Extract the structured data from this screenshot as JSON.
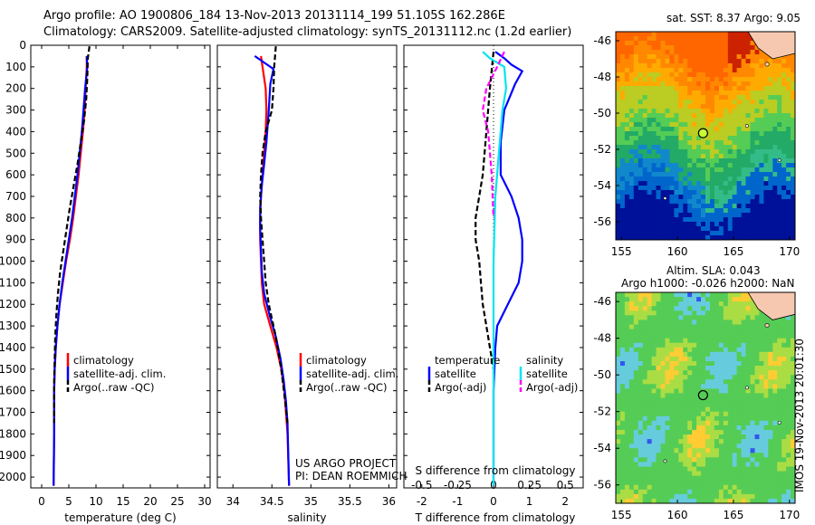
{
  "header": {
    "line1": "Argo profile: AO 1900806_184 13-Nov-2013 20131114_199 51.105S 162.286E",
    "line2": "Climatology: CARS2009. Satellite-adjusted climatology: synTS_20131112.nc (1.2d earlier)"
  },
  "credits": {
    "project": "US ARGO PROJECT",
    "pi": "PI: DEAN ROEMMICH"
  },
  "stamp": "IMOS 19-Nov-2013 20:01:30",
  "colors": {
    "climatology": "#ff0000",
    "satellite": "#0000ff",
    "argo": "#000000",
    "sat_salinity": "#00e5ee",
    "argo_salinity": "#ff00ff"
  },
  "legend_temp_sal": [
    "climatology",
    "satellite-adj. clim.",
    "Argo(..raw -QC)"
  ],
  "legend_diff": {
    "temperature_head": "temperature",
    "salinity_head": "salinity",
    "items": [
      "satellite",
      "Argo(-adj)",
      "satellite",
      "Argo(-adj)"
    ]
  },
  "depth_ticks": [
    0,
    100,
    200,
    300,
    400,
    500,
    600,
    700,
    800,
    900,
    1000,
    1100,
    1200,
    1300,
    1400,
    1500,
    1600,
    1700,
    1800,
    1900,
    2000
  ],
  "chart_data": [
    {
      "type": "line",
      "panel": "temperature",
      "xlabel": "temperature (deg C)",
      "ylabel": "",
      "xlim": [
        -2,
        31
      ],
      "ylim": [
        2050,
        0
      ],
      "xticks": [
        0,
        5,
        10,
        15,
        20,
        25,
        30
      ],
      "series": [
        {
          "name": "climatology",
          "x": [
            8.3,
            8.3,
            8.1,
            7.9,
            7.6,
            7.2,
            6.8,
            6.3,
            5.8,
            5.2,
            4.5,
            3.9,
            3.3,
            2.9,
            2.6,
            2.4,
            2.3,
            2.3,
            2.3,
            2.2
          ],
          "y": [
            50,
            100,
            200,
            300,
            400,
            500,
            600,
            700,
            800,
            900,
            1000,
            1100,
            1200,
            1300,
            1400,
            1500,
            1600,
            1700,
            1800,
            2040
          ]
        },
        {
          "name": "satellite-adj. clim.",
          "x": [
            8.3,
            8.4,
            8.0,
            7.7,
            7.4,
            7.0,
            6.6,
            6.1,
            5.6,
            5.0,
            4.4,
            3.8,
            3.3,
            2.9,
            2.6,
            2.4,
            2.3,
            2.3,
            2.3,
            2.2
          ],
          "y": [
            50,
            100,
            200,
            300,
            400,
            500,
            600,
            700,
            800,
            900,
            1000,
            1100,
            1200,
            1300,
            1400,
            1500,
            1600,
            1700,
            1800,
            2040
          ]
        },
        {
          "name": "Argo(..raw -QC)",
          "x": [
            8.8,
            8.5,
            8.4,
            8.2,
            7.8,
            7.2,
            6.6,
            5.9,
            5.2,
            4.6,
            4.0,
            3.4,
            3.0,
            2.7,
            2.5,
            2.4,
            2.3,
            2.3,
            2.3
          ],
          "y": [
            5,
            60,
            150,
            250,
            350,
            450,
            550,
            650,
            750,
            850,
            950,
            1050,
            1150,
            1250,
            1350,
            1450,
            1550,
            1650,
            1750
          ]
        }
      ]
    },
    {
      "type": "line",
      "panel": "salinity",
      "xlabel": "salinity",
      "ylabel": "",
      "xlim": [
        33.8,
        36.1
      ],
      "ylim": [
        2050,
        0
      ],
      "xticks": [
        34,
        34.5,
        35,
        35.5,
        36
      ],
      "series": [
        {
          "name": "climatology",
          "x": [
            34.36,
            34.38,
            34.42,
            34.43,
            34.42,
            34.4,
            34.38,
            34.36,
            34.35,
            34.35,
            34.36,
            34.37,
            34.4,
            34.48,
            34.56,
            34.62,
            34.66,
            34.68,
            34.7,
            34.72
          ],
          "y": [
            50,
            100,
            200,
            300,
            400,
            500,
            600,
            700,
            800,
            900,
            1000,
            1100,
            1200,
            1300,
            1400,
            1500,
            1600,
            1700,
            1800,
            2040
          ]
        },
        {
          "name": "satellite-adj. clim.",
          "x": [
            34.28,
            34.4,
            34.52,
            34.48,
            34.46,
            34.43,
            34.4,
            34.37,
            34.35,
            34.35,
            34.36,
            34.37,
            34.4,
            34.47,
            34.55,
            34.61,
            34.65,
            34.68,
            34.7,
            34.72
          ],
          "y": [
            50,
            80,
            110,
            180,
            300,
            450,
            550,
            650,
            750,
            850,
            950,
            1050,
            1150,
            1250,
            1350,
            1450,
            1550,
            1650,
            1750,
            2040
          ]
        },
        {
          "name": "Argo(..raw -QC)",
          "x": [
            34.55,
            34.53,
            34.52,
            34.5,
            34.42,
            34.38,
            34.36,
            34.35,
            34.36,
            34.38,
            34.4,
            34.42,
            34.46,
            34.55,
            34.62,
            34.67,
            34.7
          ],
          "y": [
            5,
            100,
            200,
            300,
            400,
            500,
            600,
            700,
            800,
            900,
            1000,
            1100,
            1200,
            1350,
            1500,
            1650,
            1750
          ]
        }
      ]
    },
    {
      "type": "line",
      "panel": "difference",
      "xlabel": "T difference from climatology",
      "x2label": "S difference from climatology",
      "xlim": [
        -2.5,
        2.5
      ],
      "ylim": [
        2050,
        0
      ],
      "xticks": [
        -2,
        -1,
        0,
        1,
        2
      ],
      "xticks_labels": [
        "-2",
        "-1",
        "0",
        "1",
        "2"
      ],
      "x2ticks": [
        -0.5,
        -0.25,
        0,
        0.25,
        0.5
      ],
      "x2ticks_labels": [
        "-0.5",
        "-0.25",
        "0",
        "0.25",
        "0.5"
      ],
      "series": [
        {
          "name": "satellite",
          "x": [
            0.05,
            0.3,
            0.5,
            0.8,
            0.6,
            0.3,
            0.2,
            0.2,
            0.5,
            0.7,
            0.8,
            0.8,
            0.8,
            0.7,
            0.4,
            0.1,
            0.05,
            0.0,
            0.0
          ],
          "y": [
            30,
            60,
            90,
            120,
            180,
            300,
            450,
            600,
            700,
            800,
            900,
            950,
            1000,
            1100,
            1200,
            1300,
            1400,
            1600,
            2040
          ]
        },
        {
          "name": "Argo(-adj)",
          "x": [
            0.0,
            -0.1,
            -0.2,
            -0.3,
            -0.4,
            -0.5,
            -0.5,
            -0.4,
            -0.35,
            -0.3,
            -0.2,
            -0.1,
            0.0
          ],
          "y": [
            30,
            200,
            400,
            600,
            700,
            800,
            900,
            1000,
            1100,
            1200,
            1300,
            1400,
            1500
          ]
        },
        {
          "name": "satellite",
          "x": [
            -0.3,
            -0.1,
            0.3,
            0.35,
            0.25,
            0.15,
            0.05,
            0.0,
            0.0
          ],
          "y": [
            30,
            60,
            100,
            200,
            300,
            500,
            700,
            1000,
            2040
          ]
        },
        {
          "name": "Argo(-adj)",
          "x": [
            0.3,
            0.1,
            -0.2,
            -0.3,
            -0.15,
            -0.05,
            0.0
          ],
          "y": [
            30,
            100,
            200,
            300,
            400,
            600,
            800
          ]
        }
      ]
    },
    {
      "type": "heatmap",
      "panel": "map-sst",
      "title": "sat. SST: 8.37  Argo: 9.05",
      "xlim": [
        154.5,
        170.5
      ],
      "ylim": [
        -57,
        -45.5
      ],
      "xticks": [
        155,
        160,
        165,
        170
      ],
      "yticks": [
        -46,
        -48,
        -50,
        -52,
        -54,
        -56
      ],
      "marker": {
        "lon": 162.286,
        "lat": -51.105
      }
    },
    {
      "type": "heatmap",
      "panel": "map-sla",
      "title": "Altim. SLA: 0.043",
      "subtitle": "Argo h1000: -0.026 h2000: NaN",
      "xlim": [
        154.5,
        170.5
      ],
      "ylim": [
        -57,
        -45.5
      ],
      "xticks": [
        155,
        160,
        165,
        170
      ],
      "yticks": [
        -46,
        -48,
        -50,
        -52,
        -54,
        -56
      ],
      "marker": {
        "lon": 162.286,
        "lat": -51.105
      }
    }
  ]
}
